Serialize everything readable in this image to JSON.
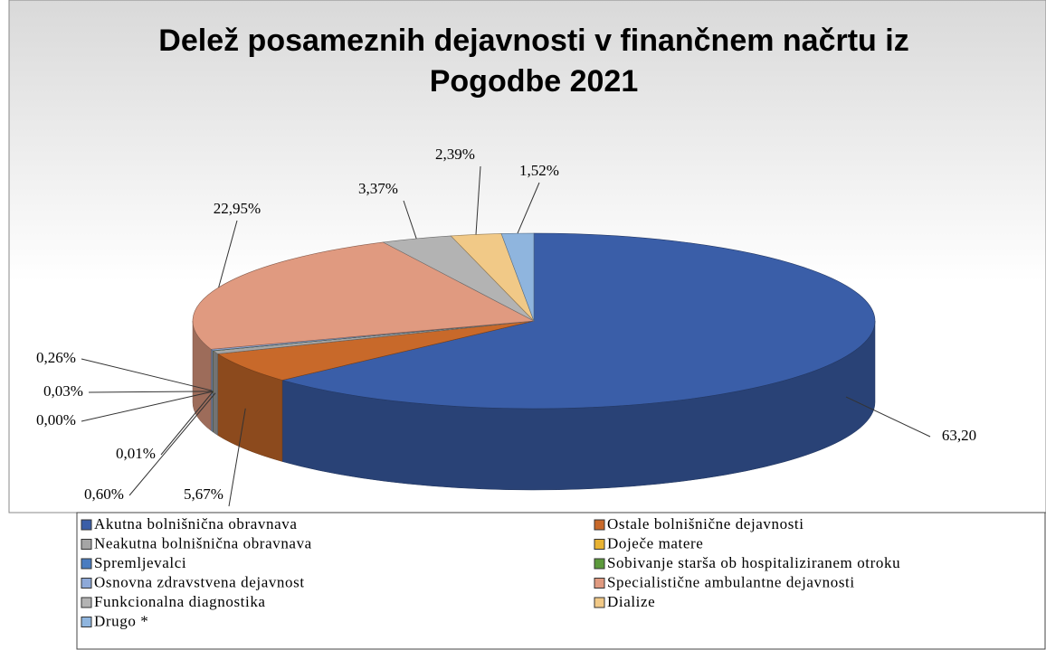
{
  "chart_data": {
    "type": "pie3d",
    "title": "Delež posameznih dejavnosti v finančnem načrtu iz Pogodbe 2021",
    "categories": [
      "Akutna bolnišnična obravnava",
      "Ostale bolnišnične dejavnosti",
      "Neakutna bolnišnična obravnava",
      "Doječe matere",
      "Spremljevalci",
      "Sobivanje starša ob hospitaliziranem otroku",
      "Osnovna zdravstvena dejavnost",
      "Specialistične ambulantne dejavnosti",
      "Funkcionalna diagnostika",
      "Dialize",
      "Drugo *"
    ],
    "values": [
      63.2,
      5.67,
      0.6,
      0.01,
      0,
      0.03,
      0.26,
      22.95,
      3.37,
      2.39,
      1.52
    ],
    "value_labels": [
      "63,20",
      "5,67%",
      "0,60%",
      "0,01%",
      "0,00%",
      "0,03%",
      "0,26%",
      "22,95%",
      "3,37%",
      "2,39%",
      "1,52%"
    ],
    "colors": [
      "#3a5ea8",
      "#c8692a",
      "#a5a5a5",
      "#e8b232",
      "#4a7cc0",
      "#5c9a3c",
      "#8ea9d8",
      "#e09a80",
      "#b3b3b3",
      "#f1c987",
      "#8fb5de"
    ]
  }
}
